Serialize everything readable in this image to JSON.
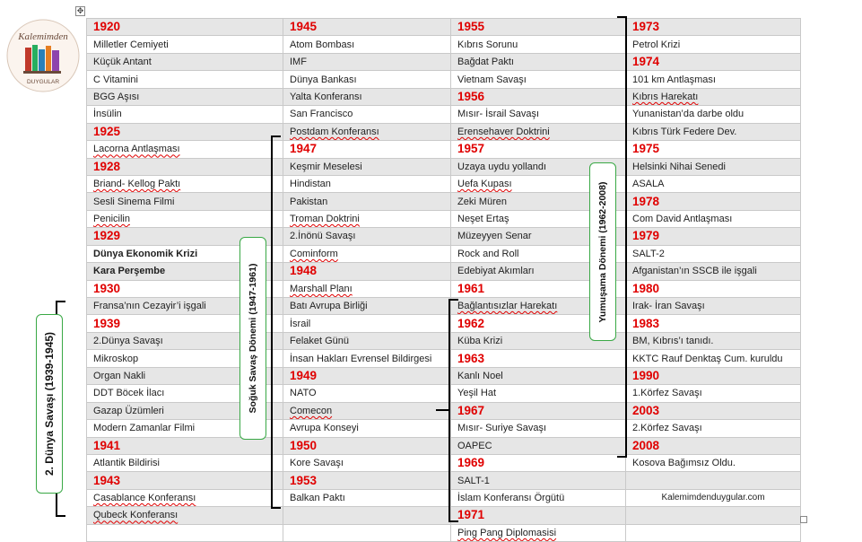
{
  "logo": {
    "top_text": "Kalemimden",
    "bottom_text": "DUYGULAR"
  },
  "rows": [
    [
      {
        "t": "1920",
        "s": "year"
      },
      {
        "t": "1945",
        "s": "year"
      },
      {
        "t": "1955",
        "s": "year"
      },
      {
        "t": "1973",
        "s": "year"
      }
    ],
    [
      {
        "t": "Milletler Cemiyeti"
      },
      {
        "t": "Atom Bombası"
      },
      {
        "t": "Kıbrıs Sorunu"
      },
      {
        "t": "Petrol Krizi"
      }
    ],
    [
      {
        "t": "Küçük Antant"
      },
      {
        "t": "IMF"
      },
      {
        "t": "Bağdat Paktı"
      },
      {
        "t": "1974",
        "s": "year"
      }
    ],
    [
      {
        "t": "C Vitamini"
      },
      {
        "t": "Dünya Bankası"
      },
      {
        "t": "Vietnam Savaşı"
      },
      {
        "t": "101 km Antlaşması"
      }
    ],
    [
      {
        "t": "BGG Aşısı"
      },
      {
        "t": "Yalta Konferansı"
      },
      {
        "t": "1956",
        "s": "year"
      },
      {
        "t": "Kıbrıs Harekatı",
        "s": "squiggle"
      }
    ],
    [
      {
        "t": "İnsülin"
      },
      {
        "t": "San Francisco"
      },
      {
        "t": "Mısır- İsrail Savaşı"
      },
      {
        "t": "Yunanistan’da darbe oldu"
      }
    ],
    [
      {
        "t": "1925",
        "s": "year"
      },
      {
        "t": "Postdam Konferansı",
        "s": "squiggle"
      },
      {
        "t": "Erensehaver Doktrini",
        "s": "squiggle"
      },
      {
        "t": "Kıbrıs Türk Federe Dev."
      }
    ],
    [
      {
        "t": "Lacorna Antlaşması",
        "s": "squiggle"
      },
      {
        "t": "1947",
        "s": "year"
      },
      {
        "t": "1957",
        "s": "year"
      },
      {
        "t": "1975",
        "s": "year"
      }
    ],
    [
      {
        "t": "1928",
        "s": "year"
      },
      {
        "t": "Keşmir Meselesi"
      },
      {
        "t": "Uzaya uydu yollandı"
      },
      {
        "t": "Helsinki Nihai Senedi"
      }
    ],
    [
      {
        "t": "Briand- Kellog Paktı",
        "s": "squiggle"
      },
      {
        "t": "Hindistan"
      },
      {
        "t": "Uefa Kupası",
        "s": "squiggle"
      },
      {
        "t": "ASALA"
      }
    ],
    [
      {
        "t": "Sesli Sinema Filmi"
      },
      {
        "t": "Pakistan"
      },
      {
        "t": "Zeki Müren"
      },
      {
        "t": "1978",
        "s": "year"
      }
    ],
    [
      {
        "t": "Penicilin",
        "s": "squiggle"
      },
      {
        "t": "Troman Doktrini",
        "s": "squiggle"
      },
      {
        "t": "Neşet Ertaş"
      },
      {
        "t": "Com David Antlaşması"
      }
    ],
    [
      {
        "t": "1929",
        "s": "year"
      },
      {
        "t": "2.İnönü Savaşı"
      },
      {
        "t": "Müzeyyen Senar"
      },
      {
        "t": "1979",
        "s": "year"
      }
    ],
    [
      {
        "t": "Dünya Ekonomik Krizi",
        "s": "bold"
      },
      {
        "t": "Cominform",
        "s": "squiggle"
      },
      {
        "t": "Rock and Roll"
      },
      {
        "t": "SALT-2"
      }
    ],
    [
      {
        "t": "Kara Perşembe",
        "s": "bold"
      },
      {
        "t": "1948",
        "s": "year"
      },
      {
        "t": "Edebiyat Akımları"
      },
      {
        "t": "Afganistan’ın SSCB ile işgali"
      }
    ],
    [
      {
        "t": "1930",
        "s": "year"
      },
      {
        "t": "Marshall  Planı",
        "s": "squiggle"
      },
      {
        "t": "1961",
        "s": "year"
      },
      {
        "t": "1980",
        "s": "year"
      }
    ],
    [
      {
        "t": "Fransa’nın Cezayir’i işgali"
      },
      {
        "t": "Batı Avrupa Birliği"
      },
      {
        "t": "Bağlantısızlar Harekatı",
        "s": "squiggle"
      },
      {
        "t": "Irak- İran Savaşı"
      }
    ],
    [
      {
        "t": "1939",
        "s": "year"
      },
      {
        "t": "İsrail"
      },
      {
        "t": "1962",
        "s": "year"
      },
      {
        "t": "1983",
        "s": "year"
      }
    ],
    [
      {
        "t": "2.Dünya Savaşı"
      },
      {
        "t": "Felaket Günü"
      },
      {
        "t": "Küba Krizi"
      },
      {
        "t": "BM, Kıbrıs’ı tanıdı."
      }
    ],
    [
      {
        "t": "Mikroskop"
      },
      {
        "t": "İnsan Hakları Evrensel Bildirgesi"
      },
      {
        "t": "1963",
        "s": "year"
      },
      {
        "t": "KKTC Rauf Denktaş Cum. kuruldu"
      }
    ],
    [
      {
        "t": "Organ Nakli"
      },
      {
        "t": "1949",
        "s": "year"
      },
      {
        "t": "Kanlı Noel"
      },
      {
        "t": "1990",
        "s": "year"
      }
    ],
    [
      {
        "t": "DDT Böcek İlacı"
      },
      {
        "t": "NATO"
      },
      {
        "t": "Yeşil Hat"
      },
      {
        "t": "1.Körfez Savaşı"
      }
    ],
    [
      {
        "t": "Gazap Üzümleri"
      },
      {
        "t": "Comecon",
        "s": "squiggle"
      },
      {
        "t": "1967",
        "s": "year"
      },
      {
        "t": "2003",
        "s": "year"
      }
    ],
    [
      {
        "t": "Modern Zamanlar Filmi"
      },
      {
        "t": "Avrupa Konseyi"
      },
      {
        "t": "Mısır- Suriye Savaşı"
      },
      {
        "t": "2.Körfez Savaşı"
      }
    ],
    [
      {
        "t": "1941",
        "s": "year"
      },
      {
        "t": "1950",
        "s": "year"
      },
      {
        "t": "OAPEC"
      },
      {
        "t": "2008",
        "s": "year"
      }
    ],
    [
      {
        "t": "Atlantik Bildirisi"
      },
      {
        "t": "Kore Savaşı"
      },
      {
        "t": "1969",
        "s": "year"
      },
      {
        "t": "Kosova Bağımsız Oldu."
      }
    ],
    [
      {
        "t": "1943",
        "s": "year"
      },
      {
        "t": "1953",
        "s": "year"
      },
      {
        "t": "SALT-1"
      },
      {
        "t": ""
      }
    ],
    [
      {
        "t": "Casablance Konferansı",
        "s": "squiggle"
      },
      {
        "t": "Balkan Paktı"
      },
      {
        "t": "İslam Konferansı Örgütü"
      },
      {
        "t": "Kalemimdenduygular.com",
        "s": "center"
      }
    ],
    [
      {
        "t": "Qubeck Konferansı",
        "s": "squiggle"
      },
      {
        "t": ""
      },
      {
        "t": "1971",
        "s": "year"
      },
      {
        "t": ""
      }
    ],
    [
      {
        "t": ""
      },
      {
        "t": ""
      },
      {
        "t": "Ping Pang Diplomasisi",
        "s": "squiggle"
      },
      {
        "t": ""
      }
    ]
  ],
  "periods": {
    "ww2": "2. Dünya Savaşı (1939-1945)",
    "cold_war": "Soğuk Savaş Dönemi (1947-1961)",
    "detente": "Yumuşama Dönemi (1962-2008)"
  },
  "colors": {
    "year_red": "#e00000",
    "box_green": "#39a845",
    "stripe_gray": "#e6e6e6",
    "grid": "#c9c9c9"
  }
}
